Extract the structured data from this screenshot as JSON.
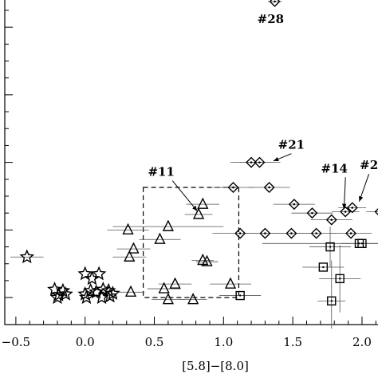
{
  "chart_data": {
    "type": "scatter",
    "xlabel": "[5.8]−[8.0]",
    "ylabel": "",
    "xlim": [
      -0.58,
      2.15
    ],
    "ylim": [
      -0.4,
      4.45
    ],
    "xticks": [
      -0.5,
      0.0,
      0.5,
      1.0,
      1.5,
      2.0
    ],
    "xtick_labels": [
      "−0.5",
      "0.0",
      "0.5",
      "1.0",
      "1.5",
      "2.0"
    ],
    "yticks_major": [
      0.0,
      1.0,
      2.0,
      3.0,
      4.0
    ],
    "yticks_minor": [
      0.25,
      0.5,
      0.75,
      1.25,
      1.5,
      1.75,
      2.25,
      2.5,
      2.75,
      3.25,
      3.5,
      3.75,
      4.25
    ],
    "grid": false,
    "legend": "none",
    "series": [
      {
        "marker": "star",
        "points": [
          {
            "x": -0.42,
            "y": 0.6,
            "xerr": 0.12
          },
          {
            "x": -0.22,
            "y": 0.12
          },
          {
            "x": -0.19,
            "y": 0.04
          },
          {
            "x": -0.16,
            "y": 0.1
          },
          {
            "x": -0.2,
            "y": 0.0
          },
          {
            "x": -0.14,
            "y": 0.05
          },
          {
            "x": 0.0,
            "y": 0.35
          },
          {
            "x": 0.05,
            "y": 0.28
          },
          {
            "x": 0.1,
            "y": 0.35
          },
          {
            "x": 0.04,
            "y": 0.1
          },
          {
            "x": 0.0,
            "y": 0.05
          },
          {
            "x": 0.08,
            "y": 0.08
          },
          {
            "x": 0.13,
            "y": 0.12
          },
          {
            "x": 0.17,
            "y": 0.1
          },
          {
            "x": 0.18,
            "y": 0.02
          },
          {
            "x": 0.2,
            "y": 0.06
          },
          {
            "x": 0.12,
            "y": 0.0
          },
          {
            "x": 0.01,
            "y": 0.0
          }
        ]
      },
      {
        "marker": "triangle",
        "points": [
          {
            "x": 0.31,
            "y": 1.0,
            "xerr": 0.15
          },
          {
            "x": 0.35,
            "y": 0.72,
            "xerr": 0.12
          },
          {
            "x": 0.32,
            "y": 0.6,
            "xerr": 0.12
          },
          {
            "x": 0.54,
            "y": 0.86,
            "xerr": 0.15
          },
          {
            "x": 0.6,
            "y": 1.05,
            "xerr": 0.4
          },
          {
            "x": 0.85,
            "y": 1.38,
            "xerr": 0.12
          },
          {
            "x": 0.82,
            "y": 1.23,
            "xerr": 0.1
          },
          {
            "x": 0.85,
            "y": 0.55,
            "xerr": 0.08
          },
          {
            "x": 0.88,
            "y": 0.53,
            "xerr": 0.08
          },
          {
            "x": 0.33,
            "y": 0.08,
            "xerr": 0.1
          },
          {
            "x": 0.57,
            "y": 0.13,
            "xerr": 0.12
          },
          {
            "x": 0.65,
            "y": 0.2,
            "xerr": 0.12
          },
          {
            "x": 0.6,
            "y": -0.03,
            "xerr": 0.12
          },
          {
            "x": 0.78,
            "y": -0.03,
            "xerr": 0.1
          },
          {
            "x": 1.05,
            "y": 0.2,
            "xerr": 0.15
          }
        ]
      },
      {
        "marker": "diamond",
        "points": [
          {
            "x": 1.37,
            "y": 4.38,
            "xerr": 0.05
          },
          {
            "x": 1.2,
            "y": 2.0,
            "xerr": 0.15
          },
          {
            "x": 1.26,
            "y": 2.0,
            "xerr": 0.15
          },
          {
            "x": 1.07,
            "y": 1.63,
            "xerr": 0.15
          },
          {
            "x": 1.33,
            "y": 1.63,
            "xerr": 0.15
          },
          {
            "x": 1.51,
            "y": 1.38,
            "xerr": 0.15
          },
          {
            "x": 1.64,
            "y": 1.25,
            "xerr": 0.15
          },
          {
            "x": 1.78,
            "y": 1.15,
            "xerr": 0.15
          },
          {
            "x": 1.88,
            "y": 1.27,
            "xerr": 0.1
          },
          {
            "x": 1.93,
            "y": 1.33,
            "xerr": 0.1
          },
          {
            "x": 2.13,
            "y": 1.27,
            "xerr": 0.1
          },
          {
            "x": 1.12,
            "y": 0.95,
            "xerr": 0.2
          },
          {
            "x": 1.3,
            "y": 0.95,
            "xerr": 0.15
          },
          {
            "x": 1.49,
            "y": 0.95,
            "xerr": 0.15
          },
          {
            "x": 1.67,
            "y": 0.95,
            "xerr": 0.15
          },
          {
            "x": 1.92,
            "y": 0.95,
            "xerr": 0.15
          }
        ]
      },
      {
        "marker": "square",
        "points": [
          {
            "x": 1.77,
            "y": 0.75,
            "xerr": 0.15,
            "yerr": 0.3
          },
          {
            "x": 1.98,
            "y": 0.8,
            "xerr": 0.7
          },
          {
            "x": 2.0,
            "y": 0.8,
            "xerr": 0.15
          },
          {
            "x": 1.72,
            "y": 0.45,
            "xerr": 0.15
          },
          {
            "x": 1.84,
            "y": 0.28,
            "xerr": 0.15,
            "yerr": 0.5
          },
          {
            "x": 1.12,
            "y": 0.03,
            "xerr": 0.15
          },
          {
            "x": 1.78,
            "y": -0.05,
            "xerr": 0.1,
            "yerr": 0.6
          }
        ]
      }
    ],
    "box": {
      "x0": 0.42,
      "x1": 1.11,
      "y0": 0.0,
      "y1": 1.63
    },
    "annotations": [
      {
        "text": "#28",
        "x": 1.34,
        "y": 4.06
      },
      {
        "text": "#21",
        "x": 1.49,
        "y": 2.2,
        "arrow_to": [
          1.36,
          2.02
        ]
      },
      {
        "text": "#11",
        "x": 0.55,
        "y": 1.8,
        "arrow_to": [
          0.81,
          1.28
        ]
      },
      {
        "text": "#14",
        "x": 1.8,
        "y": 1.85,
        "arrow_to": [
          1.87,
          1.31
        ]
      },
      {
        "text": "#2",
        "x": 2.05,
        "y": 1.9,
        "arrow_to": [
          1.98,
          1.42
        ]
      }
    ]
  }
}
